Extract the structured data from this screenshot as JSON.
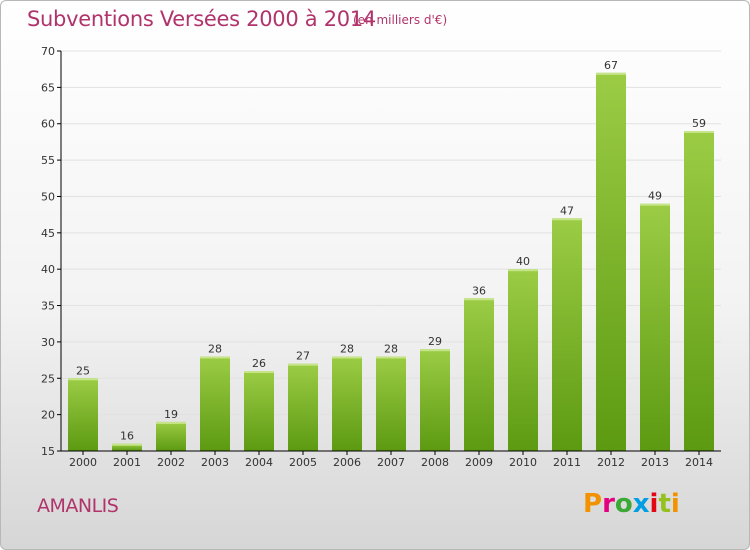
{
  "header": {
    "title": "Subventions Versées 2000 à 2014",
    "subtitle": "(en milliers d'€)"
  },
  "footer": {
    "town": "AMANLIS",
    "logo": "Proxiti",
    "logo_colors": [
      "#f39200",
      "#e4007f",
      "#3aa935",
      "#009fe3",
      "#e30613",
      "#95c11f",
      "#f39200"
    ]
  },
  "colors": {
    "title": "#b0346b",
    "bar_light": "#9ccc45",
    "bar_dark": "#5c9a12",
    "grid": "#e2e2e2",
    "axis": "#000000"
  },
  "chart_data": {
    "type": "bar",
    "categories": [
      "2000",
      "2001",
      "2002",
      "2003",
      "2004",
      "2005",
      "2006",
      "2007",
      "2008",
      "2009",
      "2010",
      "2011",
      "2012",
      "2013",
      "2014"
    ],
    "values": [
      25,
      16,
      19,
      28,
      26,
      27,
      28,
      28,
      29,
      36,
      40,
      47,
      67,
      49,
      59
    ],
    "ylim": [
      15,
      70
    ],
    "yticks": [
      15,
      20,
      25,
      30,
      35,
      40,
      45,
      50,
      55,
      60,
      65,
      70
    ],
    "grid": true,
    "legend": "none"
  }
}
